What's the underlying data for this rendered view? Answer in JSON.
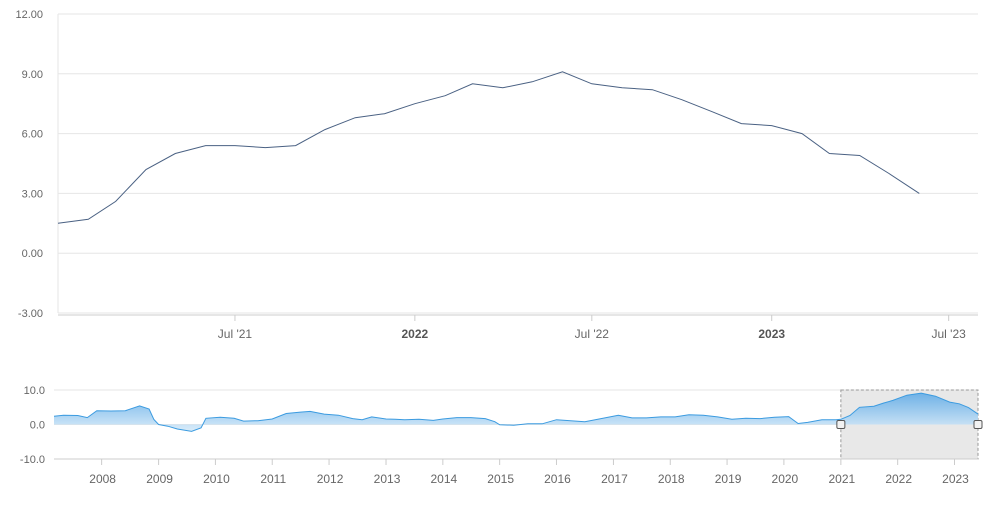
{
  "colors": {
    "main_line": "#4a6183",
    "navigator_line": "#3b9be0",
    "navigator_fill_top": "#5aa8e6",
    "navigator_fill_bottom": "#d8ebf9",
    "grid": "#e6e6e6",
    "selection_fill": "#e8e8e8",
    "selection_border": "#999999",
    "handle_border": "#555555"
  },
  "chart_data": [
    {
      "type": "line",
      "role": "main",
      "x_type": "date",
      "ylim": [
        -3,
        12
      ],
      "yticks": [
        -3,
        0,
        3,
        6,
        9,
        12
      ],
      "ytick_labels": [
        "-3.00",
        "0.00",
        "3.00",
        "6.00",
        "9.00",
        "12.00"
      ],
      "xlim": [
        "2021-01-01",
        "2023-07-31"
      ],
      "xticks": [
        {
          "date": "2021-07-01",
          "label": "Jul '21",
          "major": false
        },
        {
          "date": "2022-01-01",
          "label": "2022",
          "major": true
        },
        {
          "date": "2022-07-01",
          "label": "Jul '22",
          "major": false
        },
        {
          "date": "2023-01-01",
          "label": "2023",
          "major": true
        },
        {
          "date": "2023-07-01",
          "label": "Jul '23",
          "major": false
        }
      ],
      "grid": true,
      "series": [
        {
          "points": [
            [
              "2021-01-01",
              1.5
            ],
            [
              "2021-02-01",
              1.7
            ],
            [
              "2021-03-01",
              2.6
            ],
            [
              "2021-04-01",
              4.2
            ],
            [
              "2021-05-01",
              5.0
            ],
            [
              "2021-06-01",
              5.4
            ],
            [
              "2021-07-01",
              5.4
            ],
            [
              "2021-08-01",
              5.3
            ],
            [
              "2021-09-01",
              5.4
            ],
            [
              "2021-10-01",
              6.2
            ],
            [
              "2021-11-01",
              6.8
            ],
            [
              "2021-12-01",
              7.0
            ],
            [
              "2022-01-01",
              7.5
            ],
            [
              "2022-02-01",
              7.9
            ],
            [
              "2022-03-01",
              8.5
            ],
            [
              "2022-04-01",
              8.3
            ],
            [
              "2022-05-01",
              8.6
            ],
            [
              "2022-06-01",
              9.1
            ],
            [
              "2022-07-01",
              8.5
            ],
            [
              "2022-08-01",
              8.3
            ],
            [
              "2022-09-01",
              8.2
            ],
            [
              "2022-10-01",
              7.7
            ],
            [
              "2022-11-01",
              7.1
            ],
            [
              "2022-12-01",
              6.5
            ],
            [
              "2023-01-01",
              6.4
            ],
            [
              "2023-02-01",
              6.0
            ],
            [
              "2023-03-01",
              5.0
            ],
            [
              "2023-04-01",
              4.9
            ],
            [
              "2023-05-01",
              4.0
            ],
            [
              "2023-06-01",
              3.0
            ]
          ]
        }
      ]
    },
    {
      "type": "area",
      "role": "navigator",
      "x_type": "date",
      "ylim": [
        -10,
        10
      ],
      "yticks": [
        -10,
        0,
        10
      ],
      "ytick_labels": [
        "-10.0",
        "0.0",
        "10.0"
      ],
      "xlim": [
        "2007-03-01",
        "2023-06-01"
      ],
      "xticks": [
        {
          "date": "2008-01-01",
          "label": "2008"
        },
        {
          "date": "2009-01-01",
          "label": "2009"
        },
        {
          "date": "2010-01-01",
          "label": "2010"
        },
        {
          "date": "2011-01-01",
          "label": "2011"
        },
        {
          "date": "2012-01-01",
          "label": "2012"
        },
        {
          "date": "2013-01-01",
          "label": "2013"
        },
        {
          "date": "2014-01-01",
          "label": "2014"
        },
        {
          "date": "2015-01-01",
          "label": "2015"
        },
        {
          "date": "2016-01-01",
          "label": "2016"
        },
        {
          "date": "2017-01-01",
          "label": "2017"
        },
        {
          "date": "2018-01-01",
          "label": "2018"
        },
        {
          "date": "2019-01-01",
          "label": "2019"
        },
        {
          "date": "2020-01-01",
          "label": "2020"
        },
        {
          "date": "2021-01-01",
          "label": "2021"
        },
        {
          "date": "2022-01-01",
          "label": "2022"
        },
        {
          "date": "2023-01-01",
          "label": "2023"
        }
      ],
      "selection": [
        "2021-01-01",
        "2023-06-01"
      ],
      "series": [
        {
          "points": [
            [
              "2007-03-01",
              2.4
            ],
            [
              "2007-05-01",
              2.7
            ],
            [
              "2007-08-01",
              2.6
            ],
            [
              "2007-10-01",
              2.0
            ],
            [
              "2007-12-01",
              4.0
            ],
            [
              "2008-03-01",
              3.9
            ],
            [
              "2008-06-01",
              4.0
            ],
            [
              "2008-09-01",
              5.4
            ],
            [
              "2008-11-01",
              4.5
            ],
            [
              "2008-12-01",
              1.5
            ],
            [
              "2009-01-01",
              0.0
            ],
            [
              "2009-03-01",
              -0.5
            ],
            [
              "2009-05-01",
              -1.3
            ],
            [
              "2009-08-01",
              -2.0
            ],
            [
              "2009-10-01",
              -1.0
            ],
            [
              "2009-11-01",
              1.8
            ],
            [
              "2010-02-01",
              2.1
            ],
            [
              "2010-05-01",
              1.8
            ],
            [
              "2010-07-01",
              1.0
            ],
            [
              "2010-10-01",
              1.1
            ],
            [
              "2011-01-01",
              1.6
            ],
            [
              "2011-04-01",
              3.2
            ],
            [
              "2011-07-01",
              3.6
            ],
            [
              "2011-09-01",
              3.8
            ],
            [
              "2011-12-01",
              3.0
            ],
            [
              "2012-03-01",
              2.7
            ],
            [
              "2012-06-01",
              1.7
            ],
            [
              "2012-08-01",
              1.4
            ],
            [
              "2012-10-01",
              2.2
            ],
            [
              "2013-01-01",
              1.6
            ],
            [
              "2013-03-01",
              1.5
            ],
            [
              "2013-05-01",
              1.4
            ],
            [
              "2013-08-01",
              1.5
            ],
            [
              "2013-11-01",
              1.2
            ],
            [
              "2014-01-01",
              1.6
            ],
            [
              "2014-04-01",
              2.0
            ],
            [
              "2014-07-01",
              2.0
            ],
            [
              "2014-10-01",
              1.7
            ],
            [
              "2014-12-01",
              0.8
            ],
            [
              "2015-01-01",
              -0.1
            ],
            [
              "2015-04-01",
              -0.2
            ],
            [
              "2015-07-01",
              0.2
            ],
            [
              "2015-10-01",
              0.2
            ],
            [
              "2016-01-01",
              1.4
            ],
            [
              "2016-04-01",
              1.1
            ],
            [
              "2016-07-01",
              0.8
            ],
            [
              "2016-10-01",
              1.6
            ],
            [
              "2017-02-01",
              2.7
            ],
            [
              "2017-05-01",
              1.9
            ],
            [
              "2017-08-01",
              1.9
            ],
            [
              "2017-11-01",
              2.2
            ],
            [
              "2018-02-01",
              2.2
            ],
            [
              "2018-05-01",
              2.8
            ],
            [
              "2018-08-01",
              2.7
            ],
            [
              "2018-11-01",
              2.2
            ],
            [
              "2019-02-01",
              1.5
            ],
            [
              "2019-05-01",
              1.8
            ],
            [
              "2019-08-01",
              1.7
            ],
            [
              "2019-11-01",
              2.1
            ],
            [
              "2020-02-01",
              2.3
            ],
            [
              "2020-04-01",
              0.3
            ],
            [
              "2020-06-01",
              0.6
            ],
            [
              "2020-09-01",
              1.4
            ],
            [
              "2020-12-01",
              1.4
            ],
            [
              "2021-01-01",
              1.5
            ],
            [
              "2021-03-01",
              2.6
            ],
            [
              "2021-05-01",
              5.0
            ],
            [
              "2021-08-01",
              5.3
            ],
            [
              "2021-10-01",
              6.2
            ],
            [
              "2021-12-01",
              7.0
            ],
            [
              "2022-03-01",
              8.5
            ],
            [
              "2022-06-01",
              9.1
            ],
            [
              "2022-09-01",
              8.2
            ],
            [
              "2022-12-01",
              6.5
            ],
            [
              "2023-02-01",
              6.0
            ],
            [
              "2023-04-01",
              4.9
            ],
            [
              "2023-06-01",
              3.0
            ]
          ]
        }
      ]
    }
  ]
}
